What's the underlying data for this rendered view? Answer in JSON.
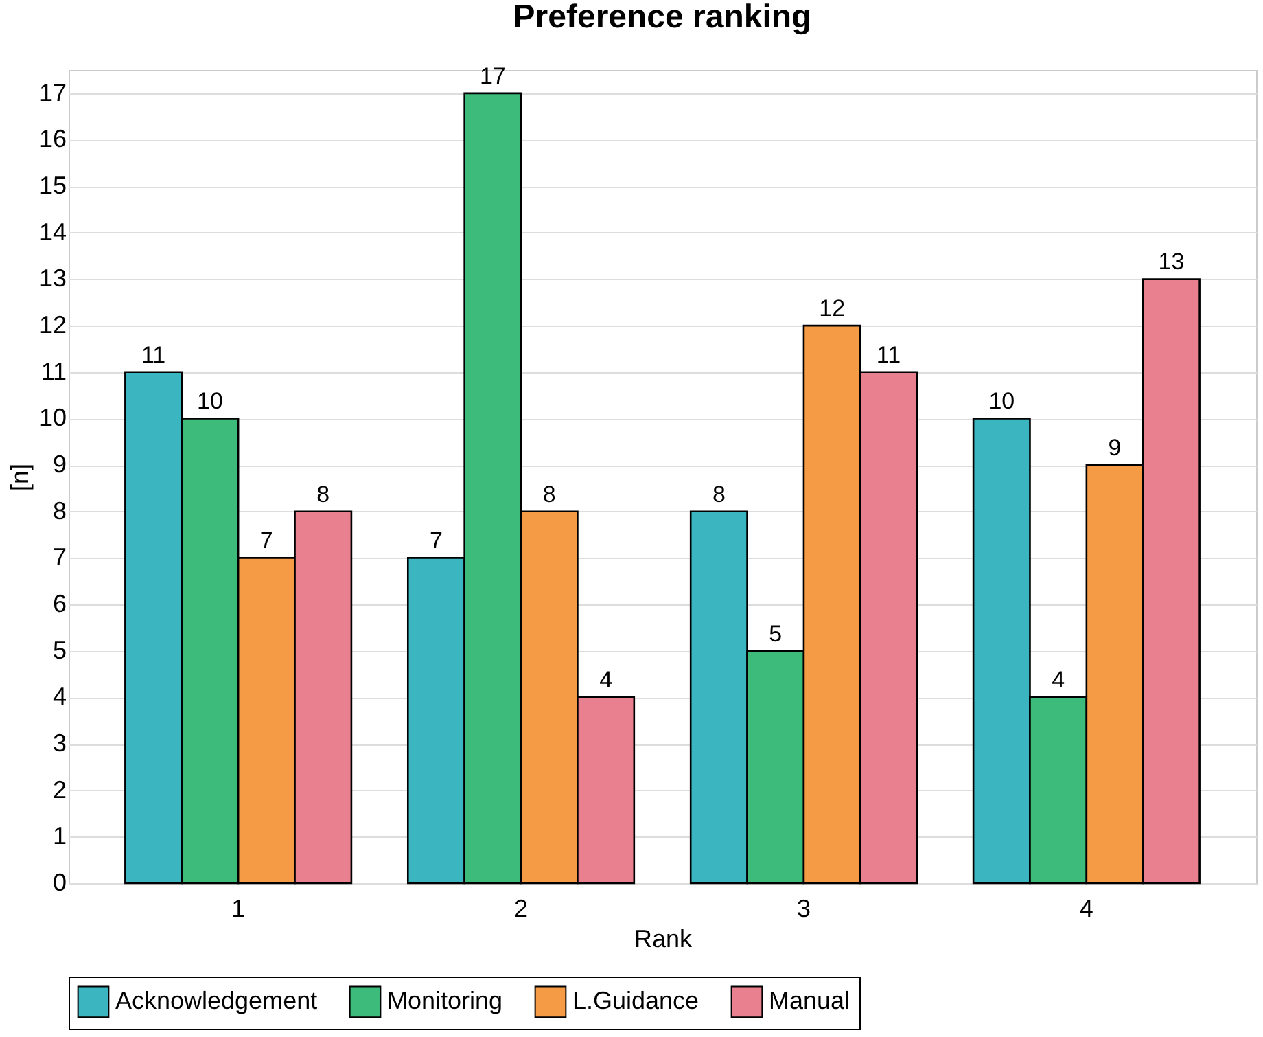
{
  "chart_data": {
    "type": "bar",
    "title": "Preference ranking",
    "xlabel": "Rank",
    "ylabel": "[n]",
    "categories": [
      "1",
      "2",
      "3",
      "4"
    ],
    "series": [
      {
        "name": "Acknowledgement",
        "color": "#3bb5bf",
        "values": [
          11,
          7,
          8,
          10
        ]
      },
      {
        "name": "Monitoring",
        "color": "#3dbb7a",
        "values": [
          10,
          17,
          5,
          4
        ]
      },
      {
        "name": "L.Guidance",
        "color": "#f59a45",
        "values": [
          7,
          8,
          12,
          9
        ]
      },
      {
        "name": "Manual",
        "color": "#e9808f",
        "values": [
          8,
          4,
          11,
          13
        ]
      }
    ],
    "ylim": [
      0,
      17.5
    ],
    "yticks": [
      0,
      1,
      2,
      3,
      4,
      5,
      6,
      7,
      8,
      9,
      10,
      11,
      12,
      13,
      14,
      15,
      16,
      17
    ],
    "grid": "y",
    "legend": "bottom",
    "data_labels": true
  }
}
